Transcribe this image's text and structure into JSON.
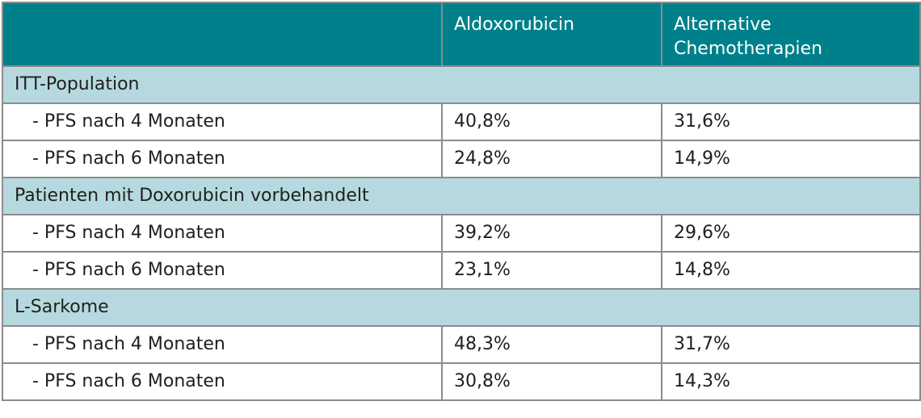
{
  "header": {
    "col1": "",
    "col2": "Aldoxorubicin",
    "col3": "Alternative Chemotherapien"
  },
  "sections": [
    {
      "title": "ITT-Population",
      "rows": [
        {
          "label": "- PFS nach 4 Monaten",
          "aldox": "40,8%",
          "alt": "31,6%"
        },
        {
          "label": "- PFS nach 6 Monaten",
          "aldox": "24,8%",
          "alt": "14,9%"
        }
      ]
    },
    {
      "title": "Patienten mit Doxorubicin vorbehandelt",
      "rows": [
        {
          "label": "- PFS nach 4 Monaten",
          "aldox": "39,2%",
          "alt": "29,6%"
        },
        {
          "label": "- PFS nach 6 Monaten",
          "aldox": "23,1%",
          "alt": "14,8%"
        }
      ]
    },
    {
      "title": "L-Sarkome",
      "rows": [
        {
          "label": "- PFS nach 4 Monaten",
          "aldox": "48,3%",
          "alt": "31,7%"
        },
        {
          "label": "- PFS nach 6 Monaten",
          "aldox": "30,8%",
          "alt": "14,3%"
        }
      ]
    }
  ]
}
